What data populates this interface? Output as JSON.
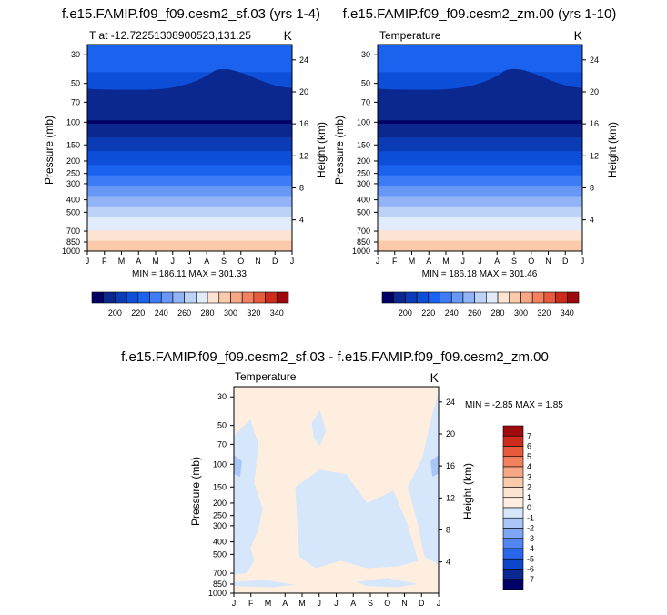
{
  "chart_data": [
    {
      "type": "heatmap",
      "id": "p1",
      "title": "f.e15.FAMIP.f09_f09.cesm2_sf.03 (yrs 1-4)",
      "subtitle_left": "T at -12.72251308900523,131.25",
      "subtitle_right": "K",
      "xlabel": "",
      "ylabel": "Pressure (mb)",
      "ylabel_right": "Height (km)",
      "x_ticks": [
        "J",
        "F",
        "M",
        "A",
        "M",
        "J",
        "J",
        "A",
        "S",
        "O",
        "N",
        "D",
        "J"
      ],
      "y_ticks": [
        "30",
        "50",
        "70",
        "100",
        "150",
        "200",
        "250",
        "300",
        "400",
        "500",
        "700",
        "850",
        "1000"
      ],
      "y_tick_values": [
        30,
        50,
        70,
        100,
        150,
        200,
        250,
        300,
        400,
        500,
        700,
        850,
        1000
      ],
      "ylim": [
        25,
        1000
      ],
      "height_ticks": [
        "4",
        "8",
        "12",
        "16",
        "20",
        "24"
      ],
      "height_tick_values": [
        4,
        8,
        12,
        16,
        20,
        24
      ],
      "stats": "MIN = 186.11 MAX = 301.33",
      "levels": [
        190,
        200,
        210,
        220,
        230,
        240,
        250,
        260,
        270,
        280,
        290,
        300,
        310,
        320,
        330,
        340,
        350
      ],
      "temperature_profile": [
        {
          "p": 30,
          "t": 228
        },
        {
          "p": 50,
          "t": 214
        },
        {
          "p": 70,
          "t": 197
        },
        {
          "p": 100,
          "t": 189
        },
        {
          "p": 150,
          "t": 205
        },
        {
          "p": 200,
          "t": 218
        },
        {
          "p": 250,
          "t": 228
        },
        {
          "p": 300,
          "t": 238
        },
        {
          "p": 400,
          "t": 255
        },
        {
          "p": 500,
          "t": 266
        },
        {
          "p": 700,
          "t": 282
        },
        {
          "p": 850,
          "t": 292
        },
        {
          "p": 1000,
          "t": 299
        }
      ],
      "colorbar": {
        "labels": [
          "200",
          "220",
          "240",
          "260",
          "280",
          "300",
          "320",
          "340"
        ],
        "colors": [
          "#000066",
          "#0a2890",
          "#0b3bb5",
          "#0d4fd9",
          "#1b63ef",
          "#3d7cf5",
          "#6898f7",
          "#92b4f6",
          "#bcd2f7",
          "#e0ebfb",
          "#fde4d2",
          "#fbcaab",
          "#f7a786",
          "#f3815f",
          "#e75a3c",
          "#cd2c1d",
          "#9e0a0d"
        ]
      }
    },
    {
      "type": "heatmap",
      "id": "p2",
      "title": "f.e15.FAMIP.f09_f09.cesm2_zm.00 (yrs 1-10)",
      "subtitle_left": "Temperature",
      "subtitle_right": "K",
      "xlabel": "",
      "ylabel": "Pressure (mb)",
      "ylabel_right": "Height (km)",
      "x_ticks": [
        "J",
        "F",
        "M",
        "A",
        "M",
        "J",
        "J",
        "A",
        "S",
        "O",
        "N",
        "D",
        "J"
      ],
      "y_ticks": [
        "30",
        "50",
        "70",
        "100",
        "150",
        "200",
        "250",
        "300",
        "400",
        "500",
        "700",
        "850",
        "1000"
      ],
      "y_tick_values": [
        30,
        50,
        70,
        100,
        150,
        200,
        250,
        300,
        400,
        500,
        700,
        850,
        1000
      ],
      "ylim": [
        25,
        1000
      ],
      "height_ticks": [
        "4",
        "8",
        "12",
        "16",
        "20",
        "24"
      ],
      "height_tick_values": [
        4,
        8,
        12,
        16,
        20,
        24
      ],
      "stats": "MIN = 186.18 MAX = 301.46",
      "levels": [
        190,
        200,
        210,
        220,
        230,
        240,
        250,
        260,
        270,
        280,
        290,
        300,
        310,
        320,
        330,
        340,
        350
      ],
      "temperature_profile": [
        {
          "p": 30,
          "t": 228
        },
        {
          "p": 50,
          "t": 214
        },
        {
          "p": 70,
          "t": 197
        },
        {
          "p": 100,
          "t": 189
        },
        {
          "p": 150,
          "t": 205
        },
        {
          "p": 200,
          "t": 218
        },
        {
          "p": 250,
          "t": 228
        },
        {
          "p": 300,
          "t": 238
        },
        {
          "p": 400,
          "t": 255
        },
        {
          "p": 500,
          "t": 266
        },
        {
          "p": 700,
          "t": 282
        },
        {
          "p": 850,
          "t": 292
        },
        {
          "p": 1000,
          "t": 299
        }
      ],
      "colorbar": {
        "labels": [
          "200",
          "220",
          "240",
          "260",
          "280",
          "300",
          "320",
          "340"
        ],
        "colors": [
          "#000066",
          "#0a2890",
          "#0b3bb5",
          "#0d4fd9",
          "#1b63ef",
          "#3d7cf5",
          "#6898f7",
          "#92b4f6",
          "#bcd2f7",
          "#e0ebfb",
          "#fde4d2",
          "#fbcaab",
          "#f7a786",
          "#f3815f",
          "#e75a3c",
          "#cd2c1d",
          "#9e0a0d"
        ]
      }
    },
    {
      "type": "heatmap",
      "id": "p3",
      "title": "f.e15.FAMIP.f09_f09.cesm2_sf.03 - f.e15.FAMIP.f09_f09.cesm2_zm.00",
      "subtitle_left": "Temperature",
      "subtitle_right": "K",
      "xlabel": "",
      "ylabel": "Pressure (mb)",
      "ylabel_right": "Height (km)",
      "x_ticks": [
        "J",
        "F",
        "M",
        "A",
        "M",
        "J",
        "J",
        "A",
        "S",
        "O",
        "N",
        "D",
        "J"
      ],
      "y_ticks": [
        "30",
        "50",
        "70",
        "100",
        "150",
        "200",
        "250",
        "300",
        "400",
        "500",
        "700",
        "850",
        "1000"
      ],
      "y_tick_values": [
        30,
        50,
        70,
        100,
        150,
        200,
        250,
        300,
        400,
        500,
        700,
        850,
        1000
      ],
      "ylim": [
        25,
        1000
      ],
      "height_ticks": [
        "4",
        "8",
        "12",
        "16",
        "20",
        "24"
      ],
      "height_tick_values": [
        4,
        8,
        12,
        16,
        20,
        24
      ],
      "stats": "MIN =  -2.85 MAX =   1.85",
      "dominant_field": "0 to 1 (light orange) with patches of -1 to 0 (light blue) and small -2 to -1 areas near 100 mb at the edges",
      "colorbar": {
        "labels": [
          "7",
          "6",
          "5",
          "4",
          "3",
          "2",
          "1",
          "0",
          "-1",
          "-2",
          "-3",
          "-4",
          "-5",
          "-6",
          "-7"
        ],
        "colors": [
          "#9e0a0d",
          "#cd2c1d",
          "#e75a3c",
          "#f3815f",
          "#f7a786",
          "#fbcaab",
          "#fde4d2",
          "#fdeee0",
          "#d6e6fb",
          "#aac6f7",
          "#7ea6f5",
          "#5286f3",
          "#2a66ee",
          "#0d46c8",
          "#0a2890",
          "#000066"
        ]
      }
    }
  ]
}
